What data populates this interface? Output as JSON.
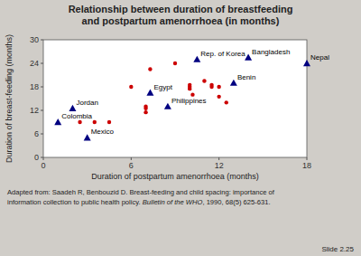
{
  "chart_data": {
    "type": "scatter",
    "title": "Relationship between duration of breastfeeding\nand postpartum amenorrhoea (in months)",
    "x_label": "Duration of postpartum amenorrhoea (months)",
    "y_label": "Duration of breast-feeding (months)",
    "xlim": [
      0,
      18
    ],
    "ylim": [
      0,
      30
    ],
    "xticks": [
      0,
      6,
      12,
      18
    ],
    "yticks": [
      0,
      6,
      12,
      18,
      24,
      30
    ],
    "grid": false,
    "series": [
      {
        "color": "#cc0000",
        "marker": "circle",
        "x": [
          2.5,
          3.5,
          4.5,
          6.0,
          7.0,
          7.0,
          7.0,
          7.3,
          9.0,
          10.0,
          10.0,
          10.0,
          10.2,
          11.0,
          11.5,
          11.5,
          12.0,
          12.0,
          12.5
        ],
        "values": [
          9.0,
          9.0,
          9.0,
          18.0,
          13.0,
          12.5,
          11.5,
          22.5,
          24.0,
          18.5,
          18.0,
          17.5,
          16.0,
          19.5,
          18.5,
          18.0,
          18.0,
          15.5,
          14.0
        ]
      },
      {
        "color": "#000080",
        "marker": "triangle",
        "x": [
          1.0,
          2.0,
          3.0,
          7.3,
          8.5,
          10.5,
          13.0,
          14.0,
          18.0
        ],
        "values": [
          9.0,
          12.5,
          5.0,
          16.5,
          13.0,
          25.0,
          19.0,
          25.5,
          24.0
        ],
        "labels": [
          "Colombia",
          "Jordan",
          "Mexico",
          "Egypt",
          "Philippines",
          "Rep. of Korea",
          "Benin",
          "Bangladesh",
          "Nepal"
        ]
      }
    ],
    "annotations": [
      "Adapted from: Saadeh R, Benbouzid D. Breast-feeding and child spacing: importance of",
      "information collection to public health policy.  ",
      "Bulletin of the WHO",
      ", 1990, 68(5) 625-631.",
      "Slide 2.25"
    ]
  }
}
